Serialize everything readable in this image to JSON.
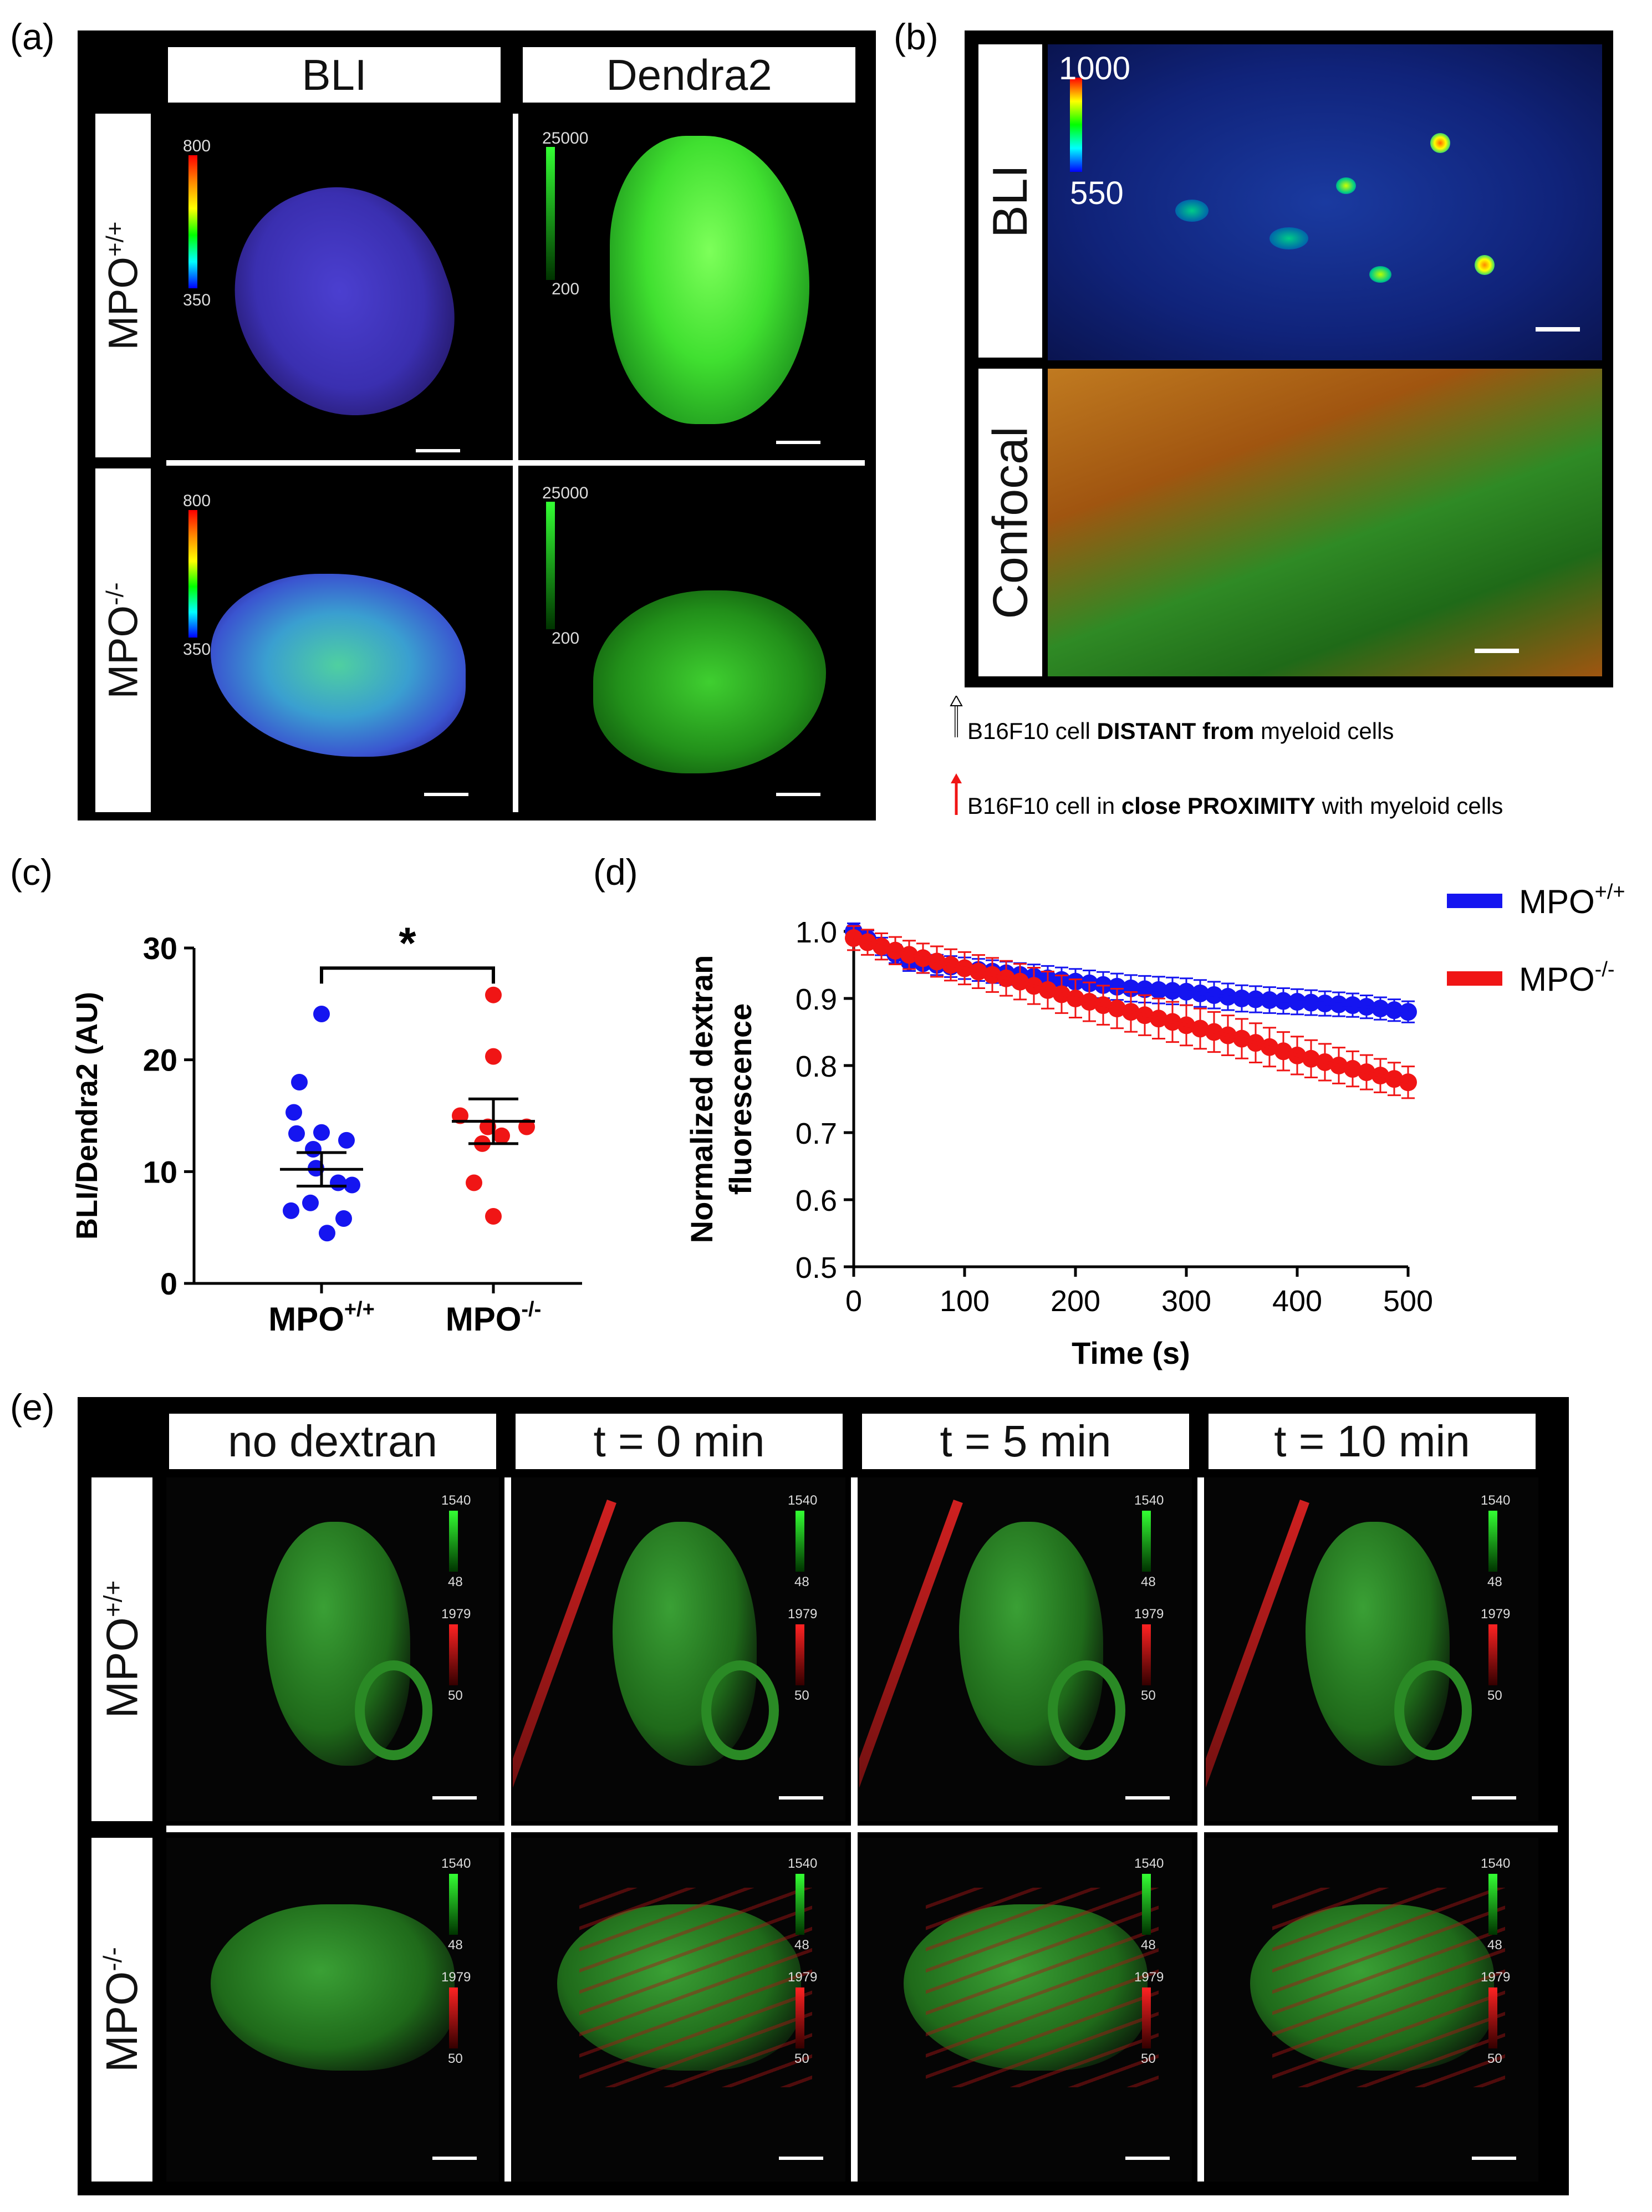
{
  "panel_a": {
    "label": "(a)",
    "col_headers": [
      "BLI",
      "Dendra2"
    ],
    "row_labels": [
      "MPO",
      "MPO"
    ],
    "row_sups": [
      "+/+",
      "-/-"
    ],
    "bli_scale": {
      "max": "800",
      "min": "350"
    },
    "dendra_scale": {
      "max": "25000",
      "min": "200"
    }
  },
  "panel_b": {
    "label": "(b)",
    "row_labels": [
      "BLI",
      "Confocal"
    ],
    "scale": {
      "max": "1000",
      "min": "550"
    },
    "legend": {
      "white_prefix": "B16F10 cell ",
      "white_bold": "DISTANT from",
      "white_suffix": " myeloid cells",
      "red_prefix": "B16F10 cell in ",
      "red_bold": "close PROXIMITY",
      "red_suffix": " with myeloid cells"
    }
  },
  "panel_c": {
    "label": "(c)",
    "significance": "*"
  },
  "panel_d": {
    "label": "(d)"
  },
  "panel_e": {
    "label": "(e)",
    "col_headers": [
      "no dextran",
      "t = 0 min",
      "t = 5 min",
      "t = 10 min"
    ],
    "row_labels": [
      "MPO",
      "MPO"
    ],
    "row_sups": [
      "+/+",
      "-/-"
    ],
    "green_scale": {
      "max": "1540",
      "min": "48"
    },
    "red_scale": {
      "max": "1979",
      "min": "50"
    }
  },
  "chart_data": [
    {
      "type": "scatter",
      "panel": "(c)",
      "ylabel": "BLI/Dendra2 (AU)",
      "categories": [
        "MPO+/+",
        "MPO-/-"
      ],
      "category_labels": [
        {
          "base": "MPO",
          "sup": "+/+"
        },
        {
          "base": "MPO",
          "sup": "-/-"
        }
      ],
      "ylim": [
        0,
        30
      ],
      "yticks": [
        0,
        10,
        20,
        30
      ],
      "series": [
        {
          "values": [
            24.1,
            18.0,
            15.3,
            13.5,
            13.4,
            12.8,
            12.0,
            10.3,
            9.0,
            8.8,
            7.2,
            6.5,
            5.8,
            4.5
          ],
          "mean": 10.2,
          "sem": 1.5,
          "color": "#1515f0"
        },
        {
          "values": [
            25.8,
            20.3,
            15.0,
            14.0,
            14.0,
            13.2,
            12.5,
            9.0,
            6.0
          ],
          "mean": 14.5,
          "sem": 2.0,
          "color": "#f01515"
        }
      ]
    },
    {
      "type": "line",
      "panel": "(d)",
      "ylabel": "Normalized dextran fluorescence",
      "xlabel": "Time (s)",
      "xlim": [
        0,
        500
      ],
      "ylim": [
        0.5,
        1.0
      ],
      "xticks": [
        0,
        100,
        200,
        300,
        400,
        500
      ],
      "yticks": [
        "0.5",
        "0.6",
        "0.7",
        "0.8",
        "0.9",
        "1.0"
      ],
      "legend_position": "top-right",
      "series": [
        {
          "name": "MPO",
          "sup": "+/+",
          "color": "#1515f0",
          "x": [
            0,
            50,
            100,
            150,
            200,
            250,
            300,
            350,
            400,
            450,
            500
          ],
          "y": [
            1.0,
            0.955,
            0.945,
            0.935,
            0.925,
            0.915,
            0.91,
            0.9,
            0.895,
            0.89,
            0.88
          ],
          "err": 0.02
        },
        {
          "name": "MPO",
          "sup": "-/-",
          "color": "#f01515",
          "x": [
            0,
            50,
            100,
            150,
            200,
            250,
            300,
            350,
            400,
            450,
            500
          ],
          "y": [
            0.99,
            0.965,
            0.945,
            0.925,
            0.9,
            0.88,
            0.86,
            0.84,
            0.815,
            0.795,
            0.775
          ],
          "err": 0.03
        }
      ]
    }
  ],
  "colors": {
    "blue": "#1515f0",
    "red": "#f01515",
    "panel_bg": "#000000"
  }
}
